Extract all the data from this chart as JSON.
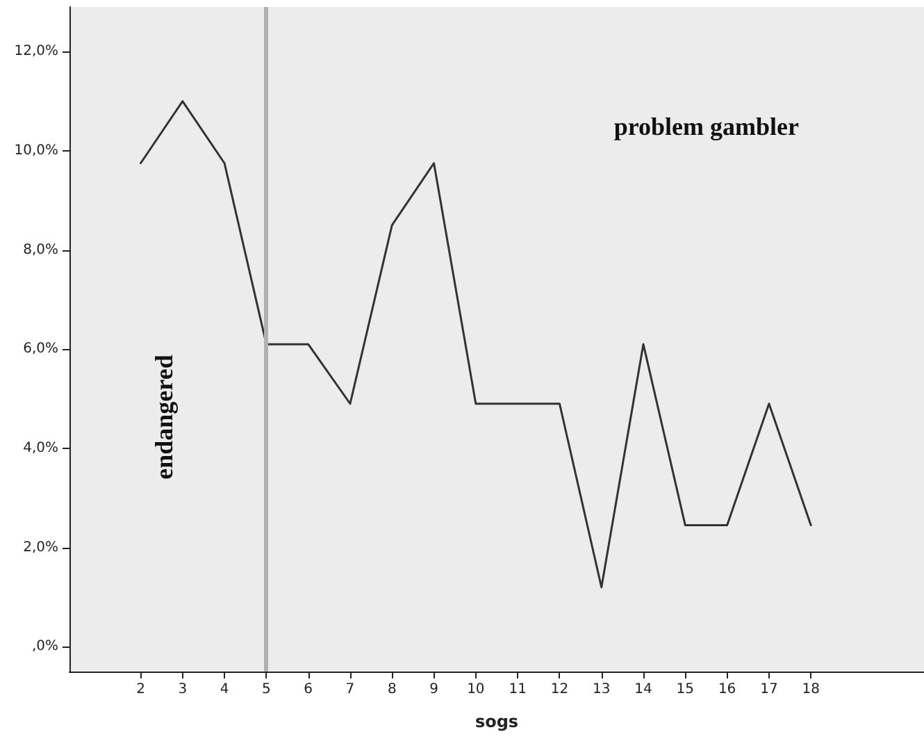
{
  "chart_data": {
    "type": "line",
    "xlabel": "sogs",
    "x": [
      2,
      3,
      4,
      5,
      6,
      7,
      8,
      9,
      10,
      11,
      12,
      13,
      14,
      15,
      16,
      17,
      18
    ],
    "series": [
      {
        "color": "#333333",
        "values": [
          9.75,
          11.0,
          9.75,
          6.1,
          6.1,
          4.9,
          8.5,
          9.75,
          4.9,
          4.9,
          4.9,
          1.2,
          6.1,
          2.45,
          2.45,
          4.9,
          2.45
        ]
      }
    ],
    "xlim": [
      0.3,
      20.7
    ],
    "xticks": [
      2,
      3,
      4,
      5,
      6,
      7,
      8,
      9,
      10,
      11,
      12,
      13,
      14,
      15,
      16,
      17,
      18
    ],
    "ylim": [
      -0.5,
      12.9
    ],
    "yticks": [
      {
        "value": 0,
        "label": ",0%"
      },
      {
        "value": 2,
        "label": "2,0%"
      },
      {
        "value": 4,
        "label": "4,0%"
      },
      {
        "value": 6,
        "label": "6,0%"
      },
      {
        "value": 8,
        "label": "8,0%"
      },
      {
        "value": 10,
        "label": "10,0%"
      },
      {
        "value": 12,
        "label": "12,0%"
      }
    ],
    "ref_lines": [
      {
        "axis": "x",
        "value": 5,
        "color": "#b0b0b0"
      }
    ],
    "annotations": [
      "problem gambler",
      "endangered"
    ],
    "grid": false,
    "marker": "none",
    "line_style": "solid"
  }
}
